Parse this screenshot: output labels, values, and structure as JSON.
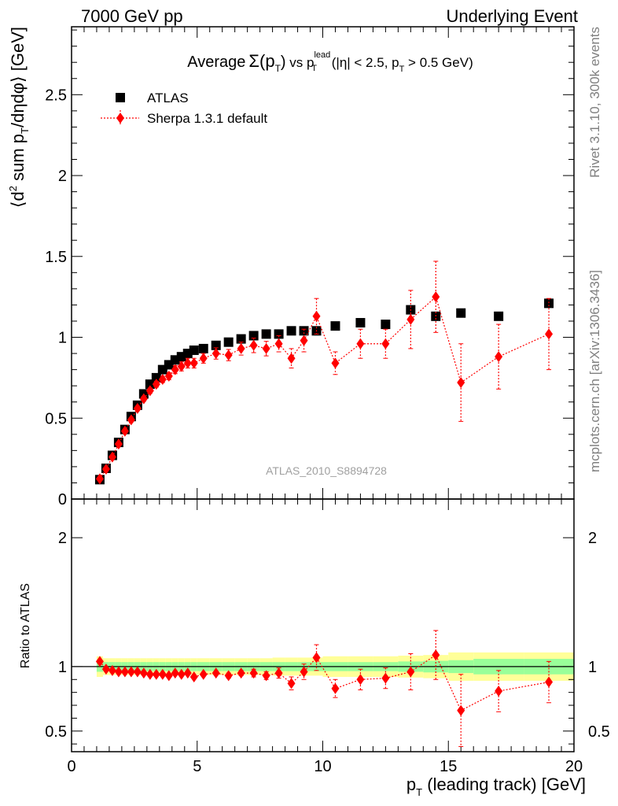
{
  "header": {
    "left": "7000 GeV pp",
    "right": "Underlying Event"
  },
  "side_labels": {
    "rivet": "Rivet 3.1.10,  300k events",
    "mcplots": "mcplots.cern.ch [arXiv:1306.3436]"
  },
  "watermark": "ATLAS_2010_S8894728",
  "colors": {
    "atlas": "#000000",
    "sherpa": "#ff0000",
    "band_inner": "#99ff99",
    "band_outer": "#ffff99"
  },
  "chart_data": [
    {
      "type": "scatter",
      "title_parts": {
        "average": "Average",
        "sigma": "Σ(p",
        "sigma_sub": "T",
        "sigma_close": ")",
        "vs": " vs p",
        "vs_sup": "lead",
        "vs_sub": "T",
        "cuts_a": " (|η| < 2.5, p",
        "cuts_sub": "T",
        "cuts_b": " > 0.5 GeV)"
      },
      "ylabel_parts": {
        "a": "⟨d",
        "sup": "2",
        "b": " sum p",
        "sub": "T",
        "c": "/dηdφ⟩ [GeV]"
      },
      "xlim": [
        0,
        20
      ],
      "ylim": [
        0,
        2.92
      ],
      "yticks": [
        {
          "v": 0,
          "label": "0"
        },
        {
          "v": 0.5,
          "label": "0.5"
        },
        {
          "v": 1,
          "label": "1"
        },
        {
          "v": 1.5,
          "label": "1.5"
        },
        {
          "v": 2,
          "label": "2"
        },
        {
          "v": 2.5,
          "label": "2.5"
        }
      ],
      "legend": {
        "placement": "top-left",
        "entries": [
          "ATLAS",
          "Sherpa 1.3.1 default"
        ]
      },
      "series": [
        {
          "name": "ATLAS",
          "marker": "square",
          "x": [
            1.125,
            1.375,
            1.625,
            1.875,
            2.125,
            2.375,
            2.625,
            2.875,
            3.125,
            3.375,
            3.625,
            3.875,
            4.125,
            4.375,
            4.625,
            4.875,
            5.25,
            5.75,
            6.25,
            6.75,
            7.25,
            7.75,
            8.25,
            8.75,
            9.25,
            9.75,
            10.5,
            11.5,
            12.5,
            13.5,
            14.5,
            15.5,
            17.0,
            19.0
          ],
          "y": [
            0.12,
            0.19,
            0.27,
            0.35,
            0.43,
            0.51,
            0.58,
            0.65,
            0.71,
            0.75,
            0.8,
            0.83,
            0.86,
            0.88,
            0.9,
            0.92,
            0.93,
            0.95,
            0.97,
            0.99,
            1.01,
            1.02,
            1.02,
            1.04,
            1.04,
            1.04,
            1.07,
            1.09,
            1.08,
            1.17,
            1.13,
            1.15,
            1.13,
            1.21
          ],
          "err": [
            0.005,
            0.005,
            0.005,
            0.005,
            0.005,
            0.005,
            0.005,
            0.005,
            0.005,
            0.005,
            0.005,
            0.005,
            0.005,
            0.005,
            0.005,
            0.005,
            0.005,
            0.005,
            0.005,
            0.005,
            0.005,
            0.005,
            0.005,
            0.005,
            0.005,
            0.005,
            0.005,
            0.005,
            0.005,
            0.005,
            0.005,
            0.005,
            0.005,
            0.005
          ]
        },
        {
          "name": "Sherpa 1.3.1 default",
          "marker": "diamond",
          "x": [
            1.125,
            1.375,
            1.625,
            1.875,
            2.125,
            2.375,
            2.625,
            2.875,
            3.125,
            3.375,
            3.625,
            3.875,
            4.125,
            4.375,
            4.625,
            4.875,
            5.25,
            5.75,
            6.25,
            6.75,
            7.25,
            7.75,
            8.25,
            8.75,
            9.25,
            9.75,
            10.5,
            11.5,
            12.5,
            13.5,
            14.5,
            15.5,
            17.0,
            19.0
          ],
          "y": [
            0.125,
            0.185,
            0.26,
            0.34,
            0.42,
            0.49,
            0.56,
            0.62,
            0.67,
            0.71,
            0.74,
            0.76,
            0.8,
            0.82,
            0.84,
            0.84,
            0.87,
            0.9,
            0.89,
            0.93,
            0.95,
            0.93,
            0.96,
            0.87,
            0.98,
            1.13,
            0.84,
            0.96,
            0.96,
            1.11,
            1.25,
            0.72,
            0.88,
            1.02
          ],
          "err": [
            0.005,
            0.005,
            0.006,
            0.008,
            0.01,
            0.012,
            0.014,
            0.015,
            0.016,
            0.018,
            0.02,
            0.022,
            0.025,
            0.028,
            0.03,
            0.03,
            0.03,
            0.035,
            0.035,
            0.04,
            0.045,
            0.045,
            0.05,
            0.06,
            0.07,
            0.11,
            0.07,
            0.09,
            0.09,
            0.18,
            0.22,
            0.24,
            0.2,
            0.22
          ]
        }
      ]
    },
    {
      "type": "scatter",
      "ylabel": "Ratio to ATLAS",
      "xlabel_parts": {
        "a": "p",
        "sub": "T",
        "b": " (leading track) [GeV]"
      },
      "xlim": [
        0,
        20
      ],
      "ylim": [
        0.34,
        2.3
      ],
      "xticks": [
        {
          "v": 0,
          "label": "0"
        },
        {
          "v": 5,
          "label": "5"
        },
        {
          "v": 10,
          "label": "10"
        },
        {
          "v": 15,
          "label": "15"
        },
        {
          "v": 20,
          "label": "20"
        }
      ],
      "yticks": [
        {
          "v": 0.5,
          "label": "0.5"
        },
        {
          "v": 1,
          "label": "1"
        },
        {
          "v": 2,
          "label": "2"
        }
      ],
      "reference_line": 1,
      "band_edges": [
        1.0,
        1.25,
        1.5,
        1.75,
        2.0,
        2.25,
        2.5,
        2.75,
        3.0,
        3.25,
        3.5,
        3.75,
        4.0,
        4.25,
        4.5,
        4.75,
        5.0,
        5.5,
        6.0,
        6.5,
        7.0,
        7.5,
        8.0,
        8.5,
        9.0,
        9.5,
        10.0,
        11.0,
        12.0,
        13.0,
        14.0,
        15.0,
        16.0,
        18.0,
        20.0
      ],
      "band_inner": [
        0.04,
        0.035,
        0.035,
        0.035,
        0.035,
        0.035,
        0.035,
        0.035,
        0.035,
        0.035,
        0.035,
        0.035,
        0.035,
        0.035,
        0.035,
        0.035,
        0.035,
        0.035,
        0.035,
        0.035,
        0.035,
        0.035,
        0.035,
        0.035,
        0.035,
        0.035,
        0.035,
        0.035,
        0.035,
        0.04,
        0.045,
        0.05,
        0.06,
        0.06
      ],
      "band_outer": [
        0.08,
        0.065,
        0.065,
        0.065,
        0.065,
        0.065,
        0.065,
        0.065,
        0.065,
        0.065,
        0.065,
        0.065,
        0.065,
        0.065,
        0.065,
        0.065,
        0.065,
        0.065,
        0.065,
        0.065,
        0.065,
        0.065,
        0.07,
        0.07,
        0.07,
        0.07,
        0.08,
        0.08,
        0.08,
        0.085,
        0.09,
        0.11,
        0.11,
        0.11
      ],
      "series": [
        {
          "name": "Sherpa 1.3.1 default",
          "marker": "diamond",
          "x": [
            1.125,
            1.375,
            1.625,
            1.875,
            2.125,
            2.375,
            2.625,
            2.875,
            3.125,
            3.375,
            3.625,
            3.875,
            4.125,
            4.375,
            4.625,
            4.875,
            5.25,
            5.75,
            6.25,
            6.75,
            7.25,
            7.75,
            8.25,
            8.75,
            9.25,
            9.75,
            10.5,
            11.5,
            12.5,
            13.5,
            14.5,
            15.5,
            17.0,
            19.0
          ],
          "y": [
            1.04,
            0.98,
            0.97,
            0.96,
            0.96,
            0.96,
            0.96,
            0.95,
            0.94,
            0.94,
            0.94,
            0.93,
            0.95,
            0.94,
            0.95,
            0.92,
            0.94,
            0.95,
            0.93,
            0.95,
            0.95,
            0.93,
            0.95,
            0.87,
            0.96,
            1.07,
            0.83,
            0.9,
            0.91,
            0.96,
            1.09,
            0.66,
            0.81,
            0.88
          ],
          "err": [
            0.01,
            0.01,
            0.01,
            0.01,
            0.01,
            0.01,
            0.01,
            0.01,
            0.01,
            0.01,
            0.01,
            0.01,
            0.01,
            0.01,
            0.01,
            0.01,
            0.01,
            0.01,
            0.02,
            0.02,
            0.03,
            0.03,
            0.04,
            0.05,
            0.06,
            0.1,
            0.07,
            0.08,
            0.08,
            0.14,
            0.19,
            0.28,
            0.16,
            0.16
          ]
        }
      ]
    }
  ]
}
